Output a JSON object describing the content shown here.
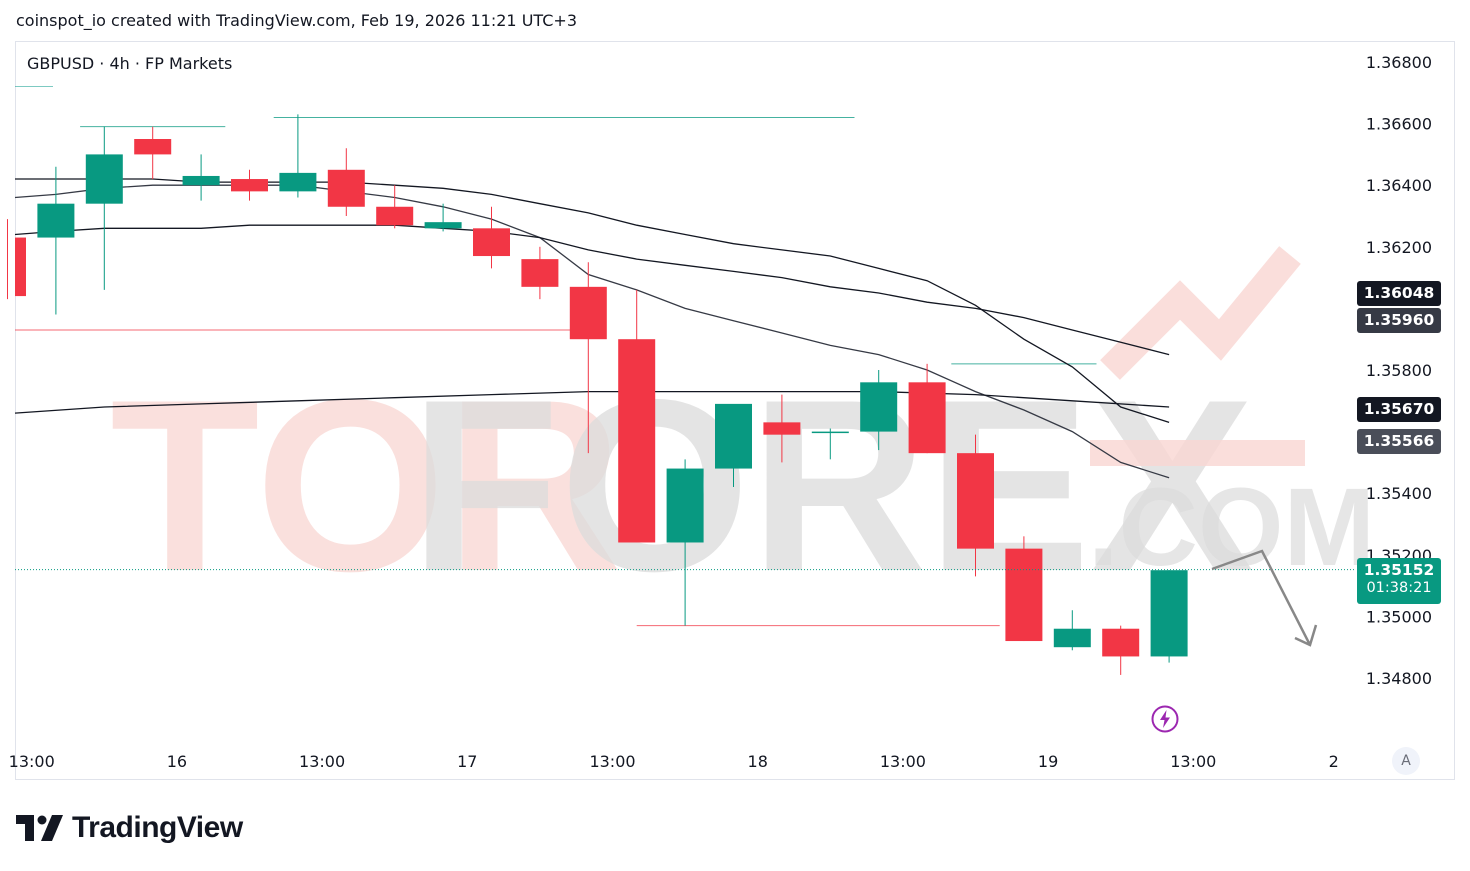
{
  "header": {
    "caption": "coinspot_io created with TradingView.com, Feb 19, 2026 11:21 UTC+3"
  },
  "symbol_line": "GBPUSD · 4h · FP Markets",
  "watermark": {
    "part1": "TOR",
    "part2": "FOREX",
    "part3": ".COM"
  },
  "price_tags": {
    "ema1": {
      "label": "1.36048",
      "color": "#131722"
    },
    "ema2": {
      "label": "1.35960",
      "color": "#363a45"
    },
    "ema3": {
      "label": "1.35670",
      "color": "#131722"
    },
    "ema4": {
      "label": "1.35566",
      "color": "#4a4e59"
    },
    "last_price": "1.35152",
    "countdown": "01:38:21"
  },
  "axis_button": "A",
  "brand": "TradingView",
  "colors": {
    "up": "#089981",
    "down": "#f23645",
    "grid": "#e0e3eb"
  },
  "chart_data": {
    "type": "candlestick",
    "symbol": "GBPUSD",
    "timeframe": "4h",
    "ylim": [
      1.3467,
      1.3698
    ],
    "y_ticks": [
      1.368,
      1.366,
      1.364,
      1.362,
      1.358,
      1.354,
      1.352,
      1.35,
      1.348
    ],
    "y_tick_labels": [
      "1.36800",
      "1.36600",
      "1.36400",
      "1.36200",
      "1.35800",
      "1.35400",
      "1.35200",
      "1.35000",
      "1.34800"
    ],
    "x_labels": [
      {
        "label": "13:00",
        "bar": 0.5
      },
      {
        "label": "16",
        "bar": 3.5
      },
      {
        "label": "13:00",
        "bar": 6.5
      },
      {
        "label": "17",
        "bar": 9.5
      },
      {
        "label": "13:00",
        "bar": 12.5
      },
      {
        "label": "18",
        "bar": 15.5
      },
      {
        "label": "13:00",
        "bar": 18.5
      },
      {
        "label": "19",
        "bar": 21.5
      },
      {
        "label": "13:00",
        "bar": 24.5
      },
      {
        "label": "2",
        "bar": 27.4
      }
    ],
    "candles": [
      {
        "o": 1.3623,
        "h": 1.3629,
        "l": 1.3603,
        "c": 1.3604
      },
      {
        "o": 1.3623,
        "h": 1.3646,
        "l": 1.3598,
        "c": 1.3634
      },
      {
        "o": 1.3634,
        "h": 1.3659,
        "l": 1.3606,
        "c": 1.365
      },
      {
        "o": 1.3655,
        "h": 1.3659,
        "l": 1.3642,
        "c": 1.365
      },
      {
        "o": 1.364,
        "h": 1.365,
        "l": 1.3635,
        "c": 1.3643
      },
      {
        "o": 1.3642,
        "h": 1.3645,
        "l": 1.3635,
        "c": 1.3638
      },
      {
        "o": 1.3638,
        "h": 1.3663,
        "l": 1.3636,
        "c": 1.3644
      },
      {
        "o": 1.3645,
        "h": 1.3652,
        "l": 1.363,
        "c": 1.3633
      },
      {
        "o": 1.3633,
        "h": 1.364,
        "l": 1.3626,
        "c": 1.3627
      },
      {
        "o": 1.3626,
        "h": 1.3634,
        "l": 1.3625,
        "c": 1.3628
      },
      {
        "o": 1.3626,
        "h": 1.3633,
        "l": 1.3613,
        "c": 1.3617
      },
      {
        "o": 1.3616,
        "h": 1.362,
        "l": 1.3603,
        "c": 1.3607
      },
      {
        "o": 1.3607,
        "h": 1.3615,
        "l": 1.3553,
        "c": 1.359
      },
      {
        "o": 1.359,
        "h": 1.3606,
        "l": 1.3524,
        "c": 1.3524
      },
      {
        "o": 1.3524,
        "h": 1.3551,
        "l": 1.3497,
        "c": 1.3548
      },
      {
        "o": 1.3548,
        "h": 1.3568,
        "l": 1.3542,
        "c": 1.3569
      },
      {
        "o": 1.3563,
        "h": 1.3572,
        "l": 1.355,
        "c": 1.3559
      },
      {
        "o": 1.356,
        "h": 1.3561,
        "l": 1.3551,
        "c": 1.356
      },
      {
        "o": 1.356,
        "h": 1.358,
        "l": 1.3554,
        "c": 1.3576
      },
      {
        "o": 1.3576,
        "h": 1.3582,
        "l": 1.3553,
        "c": 1.3553
      },
      {
        "o": 1.3553,
        "h": 1.3559,
        "l": 1.3513,
        "c": 1.3522
      },
      {
        "o": 1.3522,
        "h": 1.3526,
        "l": 1.3492,
        "c": 1.3492
      },
      {
        "o": 1.349,
        "h": 1.3502,
        "l": 1.3489,
        "c": 1.3496
      },
      {
        "o": 1.3496,
        "h": 1.3497,
        "l": 1.3481,
        "c": 1.3487
      },
      {
        "o": 1.3487,
        "h": 1.3515,
        "l": 1.3485,
        "c": 1.3515
      }
    ],
    "moving_averages": [
      {
        "points": [
          [
            0,
            1.3642
          ],
          [
            1,
            1.3642
          ],
          [
            2,
            1.3642
          ],
          [
            3,
            1.3642
          ],
          [
            4,
            1.3641
          ],
          [
            5,
            1.3641
          ],
          [
            6,
            1.3641
          ],
          [
            7,
            1.3641
          ],
          [
            8,
            1.364
          ],
          [
            9,
            1.3639
          ],
          [
            10,
            1.3637
          ],
          [
            11,
            1.3634
          ],
          [
            12,
            1.3631
          ],
          [
            13,
            1.3627
          ],
          [
            14,
            1.3624
          ],
          [
            15,
            1.3621
          ],
          [
            16,
            1.3619
          ],
          [
            17,
            1.3617
          ],
          [
            18,
            1.3613
          ],
          [
            19,
            1.3609
          ],
          [
            20,
            1.3601
          ],
          [
            21,
            1.359
          ],
          [
            22,
            1.3581
          ],
          [
            23,
            1.3568
          ],
          [
            24,
            1.3563
          ]
        ],
        "color": "#131722"
      },
      {
        "points": [
          [
            0,
            1.3636
          ],
          [
            1,
            1.3637
          ],
          [
            2,
            1.3639
          ],
          [
            3,
            1.364
          ],
          [
            4,
            1.364
          ],
          [
            5,
            1.364
          ],
          [
            6,
            1.364
          ],
          [
            7,
            1.3638
          ],
          [
            8,
            1.3636
          ],
          [
            9,
            1.3633
          ],
          [
            10,
            1.3629
          ],
          [
            11,
            1.3623
          ],
          [
            12,
            1.3611
          ],
          [
            13,
            1.3606
          ],
          [
            14,
            1.36
          ],
          [
            15,
            1.3596
          ],
          [
            16,
            1.3592
          ],
          [
            17,
            1.3588
          ],
          [
            18,
            1.3585
          ],
          [
            19,
            1.358
          ],
          [
            20,
            1.3573
          ],
          [
            21,
            1.3567
          ],
          [
            22,
            1.356
          ],
          [
            23,
            1.355
          ],
          [
            24,
            1.3545
          ]
        ],
        "color": "#363a45"
      },
      {
        "points": [
          [
            0,
            1.3624
          ],
          [
            1,
            1.3625
          ],
          [
            2,
            1.3626
          ],
          [
            3,
            1.3626
          ],
          [
            4,
            1.3626
          ],
          [
            5,
            1.3627
          ],
          [
            6,
            1.3627
          ],
          [
            7,
            1.3627
          ],
          [
            8,
            1.3627
          ],
          [
            9,
            1.3626
          ],
          [
            10,
            1.3625
          ],
          [
            11,
            1.3623
          ],
          [
            12,
            1.3619
          ],
          [
            13,
            1.3616
          ],
          [
            14,
            1.3614
          ],
          [
            15,
            1.3612
          ],
          [
            16,
            1.361
          ],
          [
            17,
            1.3607
          ],
          [
            18,
            1.3605
          ],
          [
            19,
            1.3602
          ],
          [
            20,
            1.36
          ],
          [
            21,
            1.3597
          ],
          [
            22,
            1.3593
          ],
          [
            23,
            1.3589
          ],
          [
            24,
            1.3585
          ]
        ],
        "color": "#131722"
      },
      {
        "points": [
          [
            -0.5,
            1.3566
          ],
          [
            2,
            1.3568
          ],
          [
            4,
            1.3569
          ],
          [
            6,
            1.357
          ],
          [
            8,
            1.3571
          ],
          [
            10,
            1.3572
          ],
          [
            12,
            1.3573
          ],
          [
            14,
            1.3573
          ],
          [
            16,
            1.3573
          ],
          [
            18,
            1.3573
          ],
          [
            20,
            1.3572
          ],
          [
            22,
            1.357
          ],
          [
            24,
            1.3568
          ]
        ],
        "color": "#131722"
      }
    ],
    "level_lines": [
      {
        "y": 1.3659,
        "x_from": 1.5,
        "x_to": 4.5,
        "color": "#089981"
      },
      {
        "y": 1.3662,
        "x_from": 5.5,
        "x_to": 17.5,
        "color": "#089981"
      },
      {
        "y": 1.3593,
        "x_from": -0.5,
        "x_to": 12.0,
        "color": "#f23645"
      },
      {
        "y": 1.3582,
        "x_from": 19.5,
        "x_to": 22.5,
        "color": "#089981"
      },
      {
        "y": 1.3497,
        "x_from": 13.0,
        "x_to": 20.5,
        "color": "#f23645"
      }
    ],
    "last_price": 1.35152
  }
}
